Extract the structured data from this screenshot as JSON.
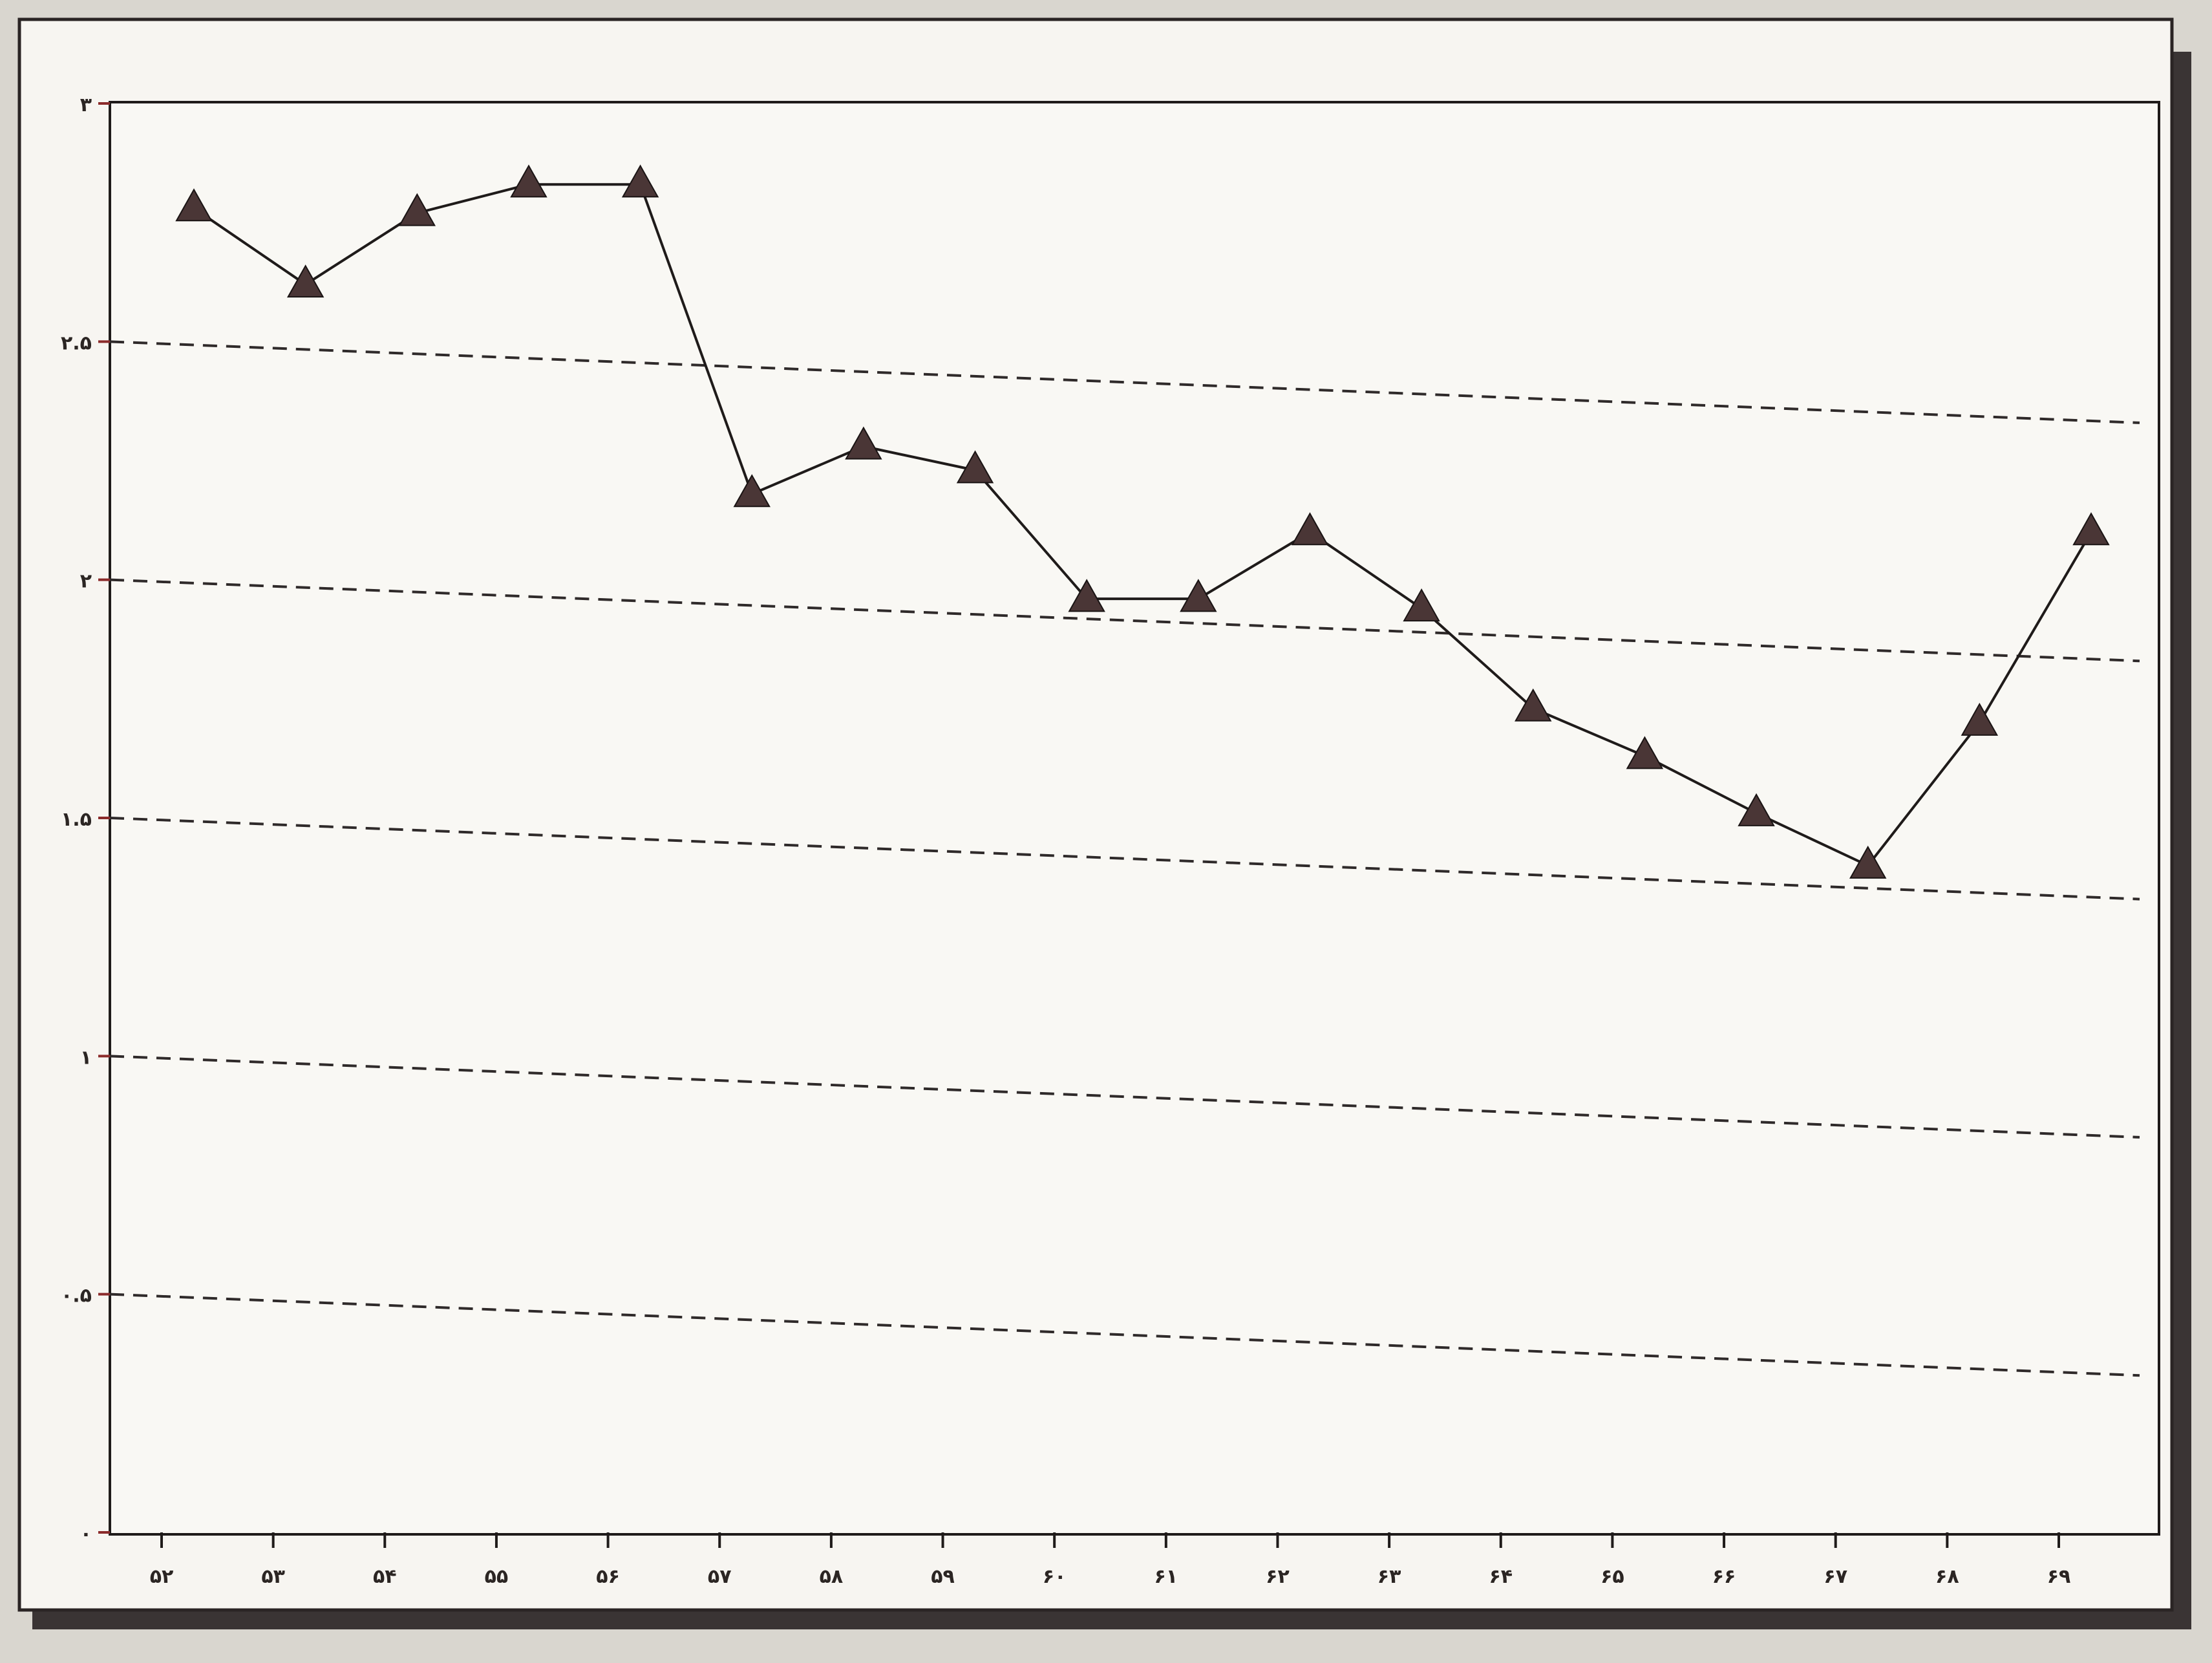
{
  "chart_data": {
    "type": "line",
    "title": "",
    "xlabel": "",
    "ylabel": "",
    "categories": [
      "۵۲",
      "۵۳",
      "۵۴",
      "۵۵",
      "۵۶",
      "۵۷",
      "۵۸",
      "۵۹",
      "۶۰",
      "۶۱",
      "۶۲",
      "۶۳",
      "۶۴",
      "۶۵",
      "۶۶",
      "۶۷",
      "۶۸",
      "۶۹"
    ],
    "series": [
      {
        "values": [
          2.78,
          2.62,
          2.77,
          2.83,
          2.83,
          2.18,
          2.28,
          2.23,
          1.96,
          1.96,
          2.1,
          1.94,
          1.73,
          1.63,
          1.51,
          1.4,
          1.7,
          2.1
        ]
      }
    ],
    "ylim": [
      0,
      3
    ],
    "yticks": [
      0,
      0.5,
      1,
      1.5,
      2,
      2.5,
      3
    ],
    "ytick_labels": [
      "۰",
      "۰.۵",
      "۱",
      "۱.۵",
      "۲",
      "۲.۵",
      "۳"
    ],
    "grid": "dashed horizontal",
    "legend": "none",
    "marker": "triangle"
  },
  "colors": {
    "background": "#f7f5f1",
    "line": "#1f1b1a",
    "marker": "#4a3636",
    "grid": "#2f2a2a",
    "tick_accent": "#8b2b2b"
  }
}
